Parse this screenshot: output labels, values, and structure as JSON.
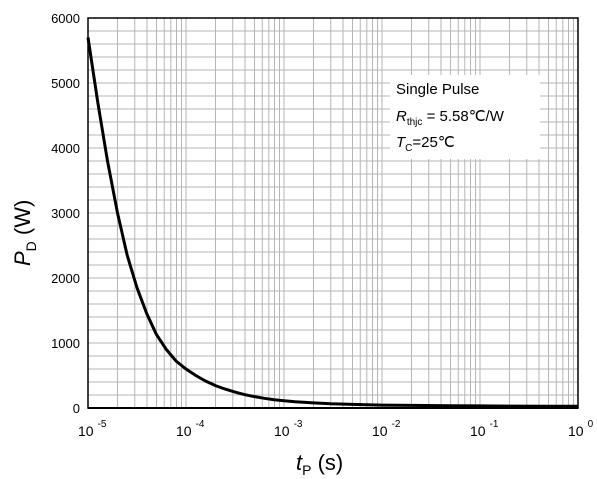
{
  "chart_data": {
    "type": "line",
    "x_scale": "log",
    "xlim": [
      1e-05,
      1
    ],
    "ylim": [
      0,
      6000
    ],
    "grid": true,
    "yticks": [
      0,
      1000,
      2000,
      3000,
      4000,
      5000,
      6000
    ],
    "ytick_labels": [
      "0",
      "1000",
      "2000",
      "3000",
      "4000",
      "5000",
      "6000"
    ],
    "xticks": [
      {
        "base": "10",
        "exp": "-5"
      },
      {
        "base": "10",
        "exp": "-4"
      },
      {
        "base": "10",
        "exp": "-3"
      },
      {
        "base": "10",
        "exp": "-2"
      },
      {
        "base": "10",
        "exp": "-1"
      },
      {
        "base": "10",
        "exp": "0"
      }
    ],
    "xlabel": {
      "main": "t",
      "sub": "P",
      "unit": " (s)"
    },
    "ylabel": {
      "main": "P",
      "sub": "D",
      "unit": " (W)"
    },
    "annotations": {
      "line1": "Single Pulse",
      "line2_main": "R",
      "line2_sub": "thjc",
      "line2_rest": " = 5.58℃/W",
      "line3_main": "T",
      "line3_sub": "C",
      "line3_rest": "=25℃"
    },
    "series": [
      {
        "color": "#000000",
        "x": [
          1e-05,
          1.26e-05,
          1.58e-05,
          2e-05,
          2.51e-05,
          3.16e-05,
          3.98e-05,
          5e-05,
          6.3e-05,
          7.94e-05,
          0.0001,
          0.000126,
          0.000158,
          0.0002,
          0.000251,
          0.000316,
          0.000398,
          0.0005,
          0.00063,
          0.000794,
          0.001,
          0.0013,
          0.002,
          0.003,
          0.005,
          0.01,
          0.02,
          0.05,
          0.1,
          0.2,
          0.5,
          1
        ],
        "y": [
          5700,
          4700,
          3800,
          3000,
          2350,
          1850,
          1450,
          1130,
          900,
          720,
          600,
          500,
          415,
          345,
          290,
          245,
          205,
          175,
          150,
          128,
          112,
          95,
          78,
          65,
          55,
          45,
          40,
          35,
          32,
          30,
          28,
          27
        ]
      }
    ]
  }
}
